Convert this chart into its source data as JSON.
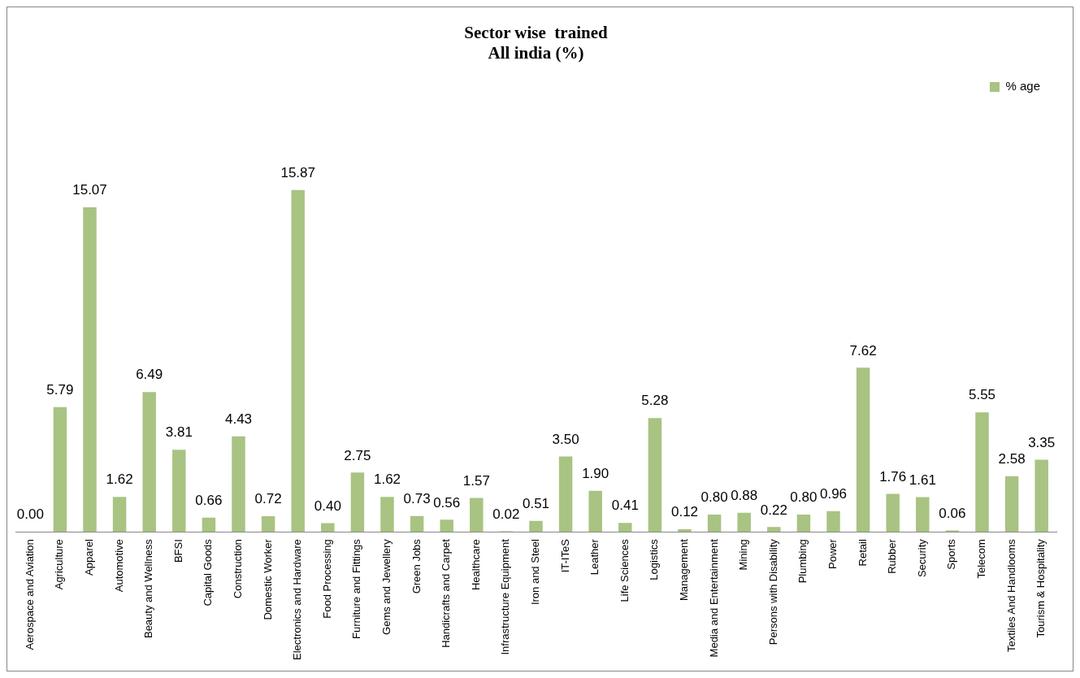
{
  "chart_data": {
    "type": "bar",
    "title": "Sector wise  trained\nAll india (%)",
    "categories": [
      "Aerospace and Aviation",
      "Agriculture",
      "Apparel",
      "Automotive",
      "Beauty and Wellness",
      "BFSI",
      "Capital Goods",
      "Construction",
      "Domestic Worker",
      "Electronics and Hardware",
      "Food Processing",
      "Furniture and Fittings",
      "Gems and Jewellery",
      "Green Jobs",
      "Handicrafts and Carpet",
      "Healthcare",
      "Infrastructure Equipment",
      "Iron and Steel",
      "IT-ITeS",
      "Leather",
      "Life Sciences",
      "Logistics",
      "Management",
      "Media and Entertainment",
      "Mining",
      "Persons with Disability",
      "Plumbing",
      "Power",
      "Retail",
      "Rubber",
      "Security",
      "Sports",
      "Telecom",
      "Textiles And Handlooms",
      "Tourism & Hospitality"
    ],
    "series": [
      {
        "name": "% age",
        "color": "#a8c382",
        "values": [
          0.0,
          5.79,
          15.07,
          1.62,
          6.49,
          3.81,
          0.66,
          4.43,
          0.72,
          15.87,
          0.4,
          2.75,
          1.62,
          0.73,
          0.56,
          1.57,
          0.02,
          0.51,
          3.5,
          1.9,
          0.41,
          5.28,
          0.12,
          0.8,
          0.88,
          0.22,
          0.8,
          0.96,
          7.62,
          1.76,
          1.61,
          0.06,
          5.55,
          2.58,
          3.35
        ],
        "value_labels": [
          "0.00",
          "5.79",
          "15.07",
          "1.62",
          "6.49",
          "3.81",
          "0.66",
          "4.43",
          "0.72",
          "15.87",
          "0.40",
          "2.75",
          "1.62",
          "0.73",
          "0.56",
          "1.57",
          "0.02",
          "0.51",
          "3.50",
          "1.90",
          "0.41",
          "5.28",
          "0.12",
          "0.80",
          "0.88",
          "0.22",
          "0.80",
          "0.96",
          "7.62",
          "1.76",
          "1.61",
          "0.06",
          "5.55",
          "2.58",
          "3.35"
        ]
      }
    ],
    "legend": "top right",
    "grid": false
  }
}
